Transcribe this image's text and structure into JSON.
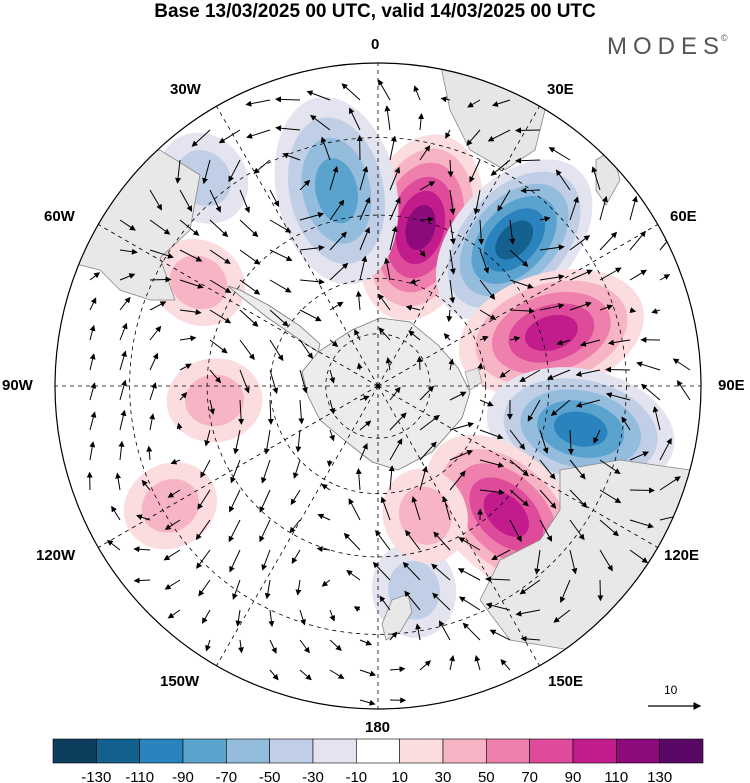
{
  "header": {
    "title": "Base 13/03/2025 00 UTC, valid 14/03/2025 00 UTC",
    "brand": "MODES"
  },
  "map": {
    "projection": "south-polar-stereographic",
    "meridian_labels": [
      "0",
      "30E",
      "60E",
      "90E",
      "120E",
      "150E",
      "180",
      "150W",
      "120W",
      "90W",
      "60W",
      "30W"
    ],
    "land_color": "#ececec",
    "reference_vector": {
      "value": "10"
    }
  },
  "anomalies": [
    {
      "lon": 15,
      "colat": 58,
      "value": 135
    },
    {
      "lon": -12,
      "colat": 68,
      "value": -95
    },
    {
      "lon": 43,
      "colat": 68,
      "value": -125
    },
    {
      "lon": 73,
      "colat": 63,
      "value": 110
    },
    {
      "lon": 102,
      "colat": 70,
      "value": -100
    },
    {
      "lon": 135,
      "colat": 63,
      "value": 110
    },
    {
      "lon": -95,
      "colat": 58,
      "value": 55
    },
    {
      "lon": -40,
      "colat": 85,
      "value": -40
    },
    {
      "lon": 170,
      "colat": 70,
      "value": -40
    },
    {
      "lon": -120,
      "colat": 78,
      "value": 40
    },
    {
      "lon": 160,
      "colat": 50,
      "value": 45
    },
    {
      "lon": -60,
      "colat": 70,
      "value": 40
    }
  ],
  "colorbar": {
    "tick_labels": [
      "-130",
      "-110",
      "-90",
      "-70",
      "-50",
      "-30",
      "-10",
      "10",
      "30",
      "50",
      "70",
      "90",
      "110",
      "130"
    ],
    "colors": [
      "#0e3e5e",
      "#14618f",
      "#2a83bd",
      "#5aa3cf",
      "#94bcdc",
      "#c1cfe6",
      "#e4e4f0",
      "#ffffff",
      "#fbdcdf",
      "#f7b4c4",
      "#ef7fad",
      "#de4b9b",
      "#c21c8c",
      "#8c0a7c",
      "#5a0866"
    ]
  }
}
